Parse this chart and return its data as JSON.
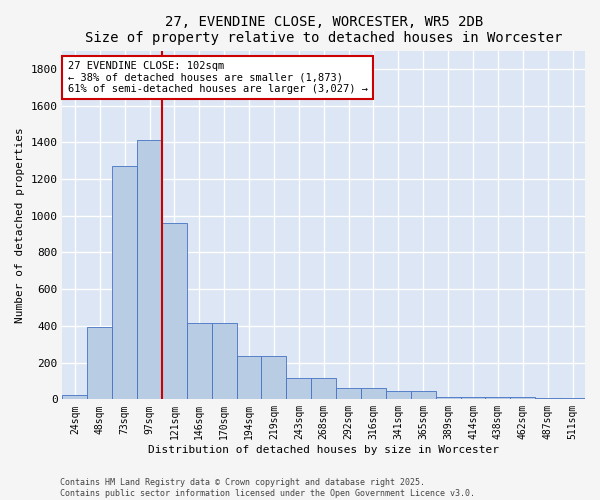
{
  "title": "27, EVENDINE CLOSE, WORCESTER, WR5 2DB",
  "subtitle": "Size of property relative to detached houses in Worcester",
  "xlabel": "Distribution of detached houses by size in Worcester",
  "ylabel": "Number of detached properties",
  "categories": [
    "24sqm",
    "48sqm",
    "73sqm",
    "97sqm",
    "121sqm",
    "146sqm",
    "170sqm",
    "194sqm",
    "219sqm",
    "243sqm",
    "268sqm",
    "292sqm",
    "316sqm",
    "341sqm",
    "365sqm",
    "389sqm",
    "414sqm",
    "438sqm",
    "462sqm",
    "487sqm",
    "511sqm"
  ],
  "values": [
    25,
    395,
    1270,
    1410,
    960,
    415,
    415,
    235,
    235,
    115,
    115,
    60,
    60,
    45,
    45,
    10,
    10,
    15,
    15,
    5,
    5
  ],
  "bar_color": "#b8cce4",
  "bar_edge_color": "#4472c4",
  "bg_color": "#dce6f5",
  "grid_color": "#ffffff",
  "vline_x": 3.5,
  "vline_color": "#cc0000",
  "annotation_text": "27 EVENDINE CLOSE: 102sqm\n← 38% of detached houses are smaller (1,873)\n61% of semi-detached houses are larger (3,027) →",
  "annotation_box_color": "#cc0000",
  "footer": "Contains HM Land Registry data © Crown copyright and database right 2025.\nContains public sector information licensed under the Open Government Licence v3.0.",
  "ylim": [
    0,
    1900
  ],
  "yticks": [
    0,
    200,
    400,
    600,
    800,
    1000,
    1200,
    1400,
    1600,
    1800
  ],
  "fig_width": 6.0,
  "fig_height": 5.0,
  "fig_dpi": 100
}
